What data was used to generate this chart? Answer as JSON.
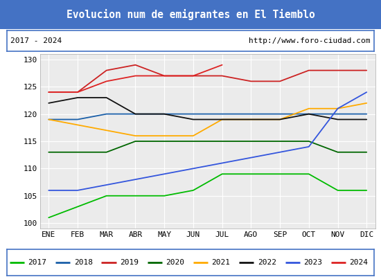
{
  "title": "Evolucion num de emigrantes en El Tiemblo",
  "title_color": "#ffffff",
  "title_bg": "#4472c4",
  "subtitle_left": "2017 - 2024",
  "subtitle_right": "http://www.foro-ciudad.com",
  "months": [
    "ENE",
    "FEB",
    "MAR",
    "ABR",
    "MAY",
    "JUN",
    "JUL",
    "AGO",
    "SEP",
    "OCT",
    "NOV",
    "DIC"
  ],
  "ylim": [
    99,
    131
  ],
  "yticks": [
    100,
    105,
    110,
    115,
    120,
    125,
    130
  ],
  "series": {
    "2017": {
      "color": "#00bb00",
      "data": [
        101,
        103,
        105,
        105,
        105,
        106,
        109,
        109,
        109,
        109,
        106,
        106
      ]
    },
    "2018": {
      "color": "#1a5fa8",
      "data": [
        119,
        119,
        120,
        120,
        120,
        120,
        120,
        120,
        120,
        120,
        120,
        120
      ]
    },
    "2019": {
      "color": "#cc2222",
      "data": [
        124,
        124,
        128,
        129,
        127,
        127,
        127,
        126,
        126,
        128,
        128,
        128
      ]
    },
    "2020": {
      "color": "#006600",
      "data": [
        113,
        113,
        113,
        115,
        115,
        115,
        115,
        115,
        115,
        115,
        113,
        113
      ]
    },
    "2021": {
      "color": "#ffaa00",
      "data": [
        119,
        118,
        117,
        116,
        116,
        116,
        119,
        119,
        119,
        121,
        121,
        122
      ]
    },
    "2022": {
      "color": "#111111",
      "data": [
        122,
        123,
        123,
        120,
        120,
        119,
        119,
        119,
        119,
        120,
        119,
        119
      ]
    },
    "2023": {
      "color": "#3355dd",
      "data": [
        106,
        106,
        107,
        108,
        109,
        110,
        111,
        112,
        113,
        114,
        121,
        124
      ]
    },
    "2024": {
      "color": "#dd2222",
      "data": [
        124,
        124,
        126,
        127,
        127,
        127,
        129,
        null,
        null,
        null,
        null,
        null
      ]
    }
  },
  "legend_order": [
    "2017",
    "2018",
    "2019",
    "2020",
    "2021",
    "2022",
    "2023",
    "2024"
  ],
  "bg_color": "#ffffff",
  "plot_bg": "#ebebeb",
  "grid_color": "#ffffff",
  "border_color": "#4472c4"
}
